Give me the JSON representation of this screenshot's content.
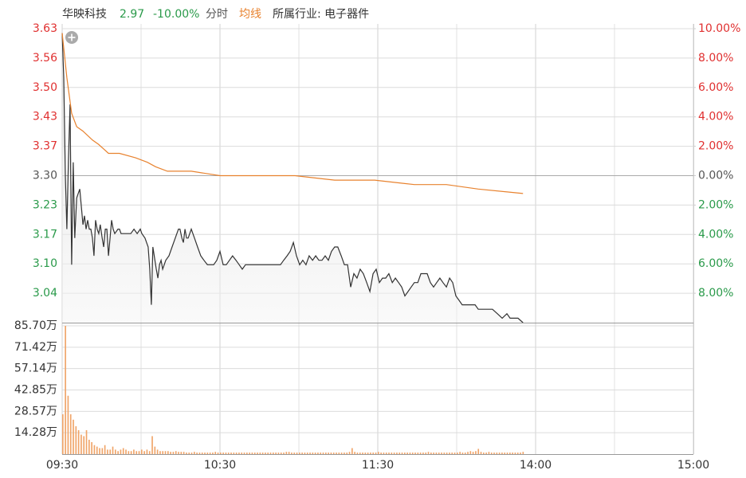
{
  "chart_data": [
    {
      "type": "line",
      "title": "华映科技",
      "price": "2.97",
      "change": "-10.00%",
      "industry": "所属行业: 电子器件",
      "xlim": [
        0,
        240
      ],
      "xticks": [
        {
          "value": 0,
          "label": "09:30"
        },
        {
          "value": 60,
          "label": "10:30"
        },
        {
          "value": 120,
          "label": "11:30"
        },
        {
          "value": 180,
          "label": "14:00"
        },
        {
          "value": 240,
          "label": "15:00"
        }
      ],
      "minor_xticks": [
        30,
        90,
        150,
        210
      ],
      "ylim": [
        2.97,
        3.63
      ],
      "yticks": [
        3.63,
        {
          "value": 3.564,
          "label": "3.56"
        },
        {
          "value": 3.498,
          "label": "3.50"
        },
        {
          "value": 3.432,
          "label": "3.43"
        },
        {
          "value": 3.366,
          "label": "3.37"
        },
        {
          "value": 3.3,
          "label": "3.30"
        },
        {
          "value": 3.234,
          "label": "3.23"
        },
        {
          "value": 3.168,
          "label": "3.17"
        },
        {
          "value": 3.102,
          "label": "3.10"
        },
        {
          "value": 3.036,
          "label": "3.04"
        }
      ],
      "y2lim": [
        -10,
        10
      ],
      "y2ticks": [
        {
          "value": 10,
          "label": "10.00%"
        },
        {
          "value": 8,
          "label": "8.00%"
        },
        {
          "value": 6,
          "label": "6.00%"
        },
        {
          "value": 4,
          "label": "4.00%"
        },
        {
          "value": 2,
          "label": "2.00%"
        },
        {
          "value": 0,
          "label": "0.00%"
        },
        {
          "value": -2,
          "label": "2.00%"
        },
        {
          "value": -4,
          "label": "4.00%"
        },
        {
          "value": -6,
          "label": "6.00%"
        },
        {
          "value": -8,
          "label": "8.00%"
        }
      ],
      "grid": true,
      "series": [
        {
          "name": "分时",
          "color": "#333333",
          "x": [
            0.0,
            0.6,
            1.2,
            1.8,
            2.4,
            3.0,
            3.6,
            4.2,
            4.8,
            5.5,
            6.1,
            6.7,
            7.3,
            7.9,
            8.5,
            9.1,
            9.7,
            10.3,
            10.9,
            11.5,
            12.1,
            12.7,
            13.3,
            13.9,
            14.5,
            15.2,
            15.8,
            16.4,
            17.0,
            17.6,
            18.2,
            18.8,
            19.4,
            20.0,
            21.2,
            21.8,
            22.4,
            23.6,
            24.8,
            26.1,
            27.3,
            28.5,
            29.7,
            30.3,
            31.5,
            32.7,
            33.3,
            33.9,
            34.5,
            35.8,
            36.4,
            37.0,
            37.6,
            38.2,
            39.4,
            40.6,
            41.8,
            43.0,
            44.2,
            44.8,
            45.5,
            46.1,
            46.7,
            47.3,
            47.9,
            49.1,
            50.3,
            51.5,
            52.7,
            53.9,
            55.2,
            56.4,
            57.6,
            58.8,
            60.0,
            61.2,
            62.4,
            63.6,
            64.8,
            66.1,
            67.3,
            68.5,
            69.7,
            70.9,
            72.1,
            73.3,
            74.5,
            75.8,
            77.0,
            78.2,
            79.4,
            80.6,
            81.8,
            83.0,
            84.2,
            85.5,
            86.7,
            87.9,
            89.1,
            90.3,
            91.5,
            92.7,
            93.9,
            95.2,
            96.4,
            97.6,
            98.8,
            100.0,
            101.2,
            102.4,
            103.6,
            104.8,
            106.1,
            107.3,
            108.5,
            109.7,
            110.9,
            112.1,
            113.3,
            114.5,
            115.8,
            117.0,
            118.2,
            119.4,
            120.6,
            121.8,
            123.0,
            124.2,
            125.5,
            126.7,
            127.9,
            129.1,
            130.3,
            131.5,
            132.7,
            133.9,
            135.2,
            136.4,
            137.6,
            138.8,
            140.0,
            141.2,
            142.4,
            143.6,
            144.8,
            146.1,
            147.3,
            148.5,
            149.7,
            150.9,
            152.1,
            155.2,
            157.0,
            158.2,
            160.0,
            161.2,
            163.6,
            165.5,
            167.3,
            169.1,
            170.3,
            173.3,
            175.2
          ],
          "values": [
            3.62,
            3.52,
            3.3,
            3.18,
            3.34,
            3.46,
            3.1,
            3.33,
            3.16,
            3.25,
            3.26,
            3.27,
            3.23,
            3.19,
            3.21,
            3.18,
            3.2,
            3.18,
            3.18,
            3.16,
            3.12,
            3.2,
            3.18,
            3.17,
            3.19,
            3.16,
            3.14,
            3.18,
            3.18,
            3.12,
            3.16,
            3.2,
            3.18,
            3.17,
            3.18,
            3.18,
            3.17,
            3.17,
            3.17,
            3.17,
            3.18,
            3.17,
            3.18,
            3.17,
            3.16,
            3.14,
            3.09,
            3.01,
            3.14,
            3.09,
            3.07,
            3.1,
            3.11,
            3.09,
            3.11,
            3.12,
            3.14,
            3.16,
            3.18,
            3.18,
            3.16,
            3.15,
            3.18,
            3.16,
            3.16,
            3.18,
            3.16,
            3.14,
            3.12,
            3.11,
            3.1,
            3.1,
            3.1,
            3.11,
            3.13,
            3.1,
            3.1,
            3.11,
            3.12,
            3.11,
            3.1,
            3.09,
            3.1,
            3.1,
            3.1,
            3.1,
            3.1,
            3.1,
            3.1,
            3.1,
            3.1,
            3.1,
            3.1,
            3.1,
            3.11,
            3.12,
            3.13,
            3.15,
            3.12,
            3.1,
            3.11,
            3.1,
            3.12,
            3.11,
            3.12,
            3.11,
            3.11,
            3.12,
            3.11,
            3.13,
            3.14,
            3.14,
            3.12,
            3.1,
            3.1,
            3.05,
            3.08,
            3.07,
            3.09,
            3.08,
            3.06,
            3.04,
            3.08,
            3.09,
            3.06,
            3.07,
            3.07,
            3.08,
            3.06,
            3.07,
            3.06,
            3.05,
            3.03,
            3.04,
            3.05,
            3.06,
            3.06,
            3.08,
            3.08,
            3.08,
            3.06,
            3.05,
            3.06,
            3.07,
            3.06,
            3.05,
            3.07,
            3.06,
            3.03,
            3.02,
            3.01,
            3.01,
            3.01,
            3.0,
            3.0,
            3.0,
            3.0,
            2.99,
            2.98,
            2.99,
            2.98,
            2.98,
            2.97
          ]
        },
        {
          "name": "均线",
          "color": "#e8822e",
          "x": [
            0,
            1.8,
            3.6,
            5.5,
            7.9,
            11.5,
            13.9,
            17.6,
            21.8,
            27.9,
            32.4,
            35.5,
            40,
            49.1,
            60,
            73.3,
            88.5,
            103.6,
            118.8,
            133.9,
            146.1,
            158.2,
            175.2
          ],
          "values": [
            3.62,
            3.52,
            3.44,
            3.41,
            3.4,
            3.38,
            3.37,
            3.35,
            3.35,
            3.34,
            3.33,
            3.32,
            3.31,
            3.31,
            3.3,
            3.3,
            3.3,
            3.29,
            3.29,
            3.28,
            3.28,
            3.27,
            3.26
          ]
        }
      ]
    },
    {
      "type": "bar",
      "color": "#f0a468",
      "xlim": [
        0,
        240
      ],
      "ylim": [
        0,
        85.7
      ],
      "yticks": [
        {
          "value": 85.7,
          "label": "85.70万"
        },
        {
          "value": 71.42,
          "label": "71.42万"
        },
        {
          "value": 57.14,
          "label": "57.14万"
        },
        {
          "value": 42.85,
          "label": "42.85万"
        },
        {
          "value": 28.57,
          "label": "28.57万"
        },
        {
          "value": 14.28,
          "label": "14.28万"
        }
      ],
      "x": [
        0,
        1,
        2,
        3,
        4,
        5,
        6,
        7,
        8,
        9,
        10,
        11,
        12,
        13,
        14,
        15,
        16,
        17,
        18,
        19,
        20,
        21,
        22,
        23,
        24,
        25,
        26,
        27,
        28,
        29,
        30,
        31,
        32,
        33,
        34,
        35,
        36,
        37,
        38,
        39,
        40,
        41,
        42,
        43,
        44,
        45,
        46,
        47,
        48,
        49,
        50,
        51,
        52,
        53,
        54,
        55,
        56,
        57,
        58,
        59,
        60,
        61,
        62,
        63,
        64,
        65,
        66,
        67,
        68,
        69,
        70,
        71,
        72,
        73,
        74,
        75,
        76,
        77,
        78,
        79,
        80,
        81,
        82,
        83,
        84,
        85,
        86,
        87,
        88,
        89,
        90,
        91,
        92,
        93,
        94,
        95,
        96,
        97,
        98,
        99,
        100,
        101,
        102,
        103,
        104,
        105,
        106,
        107,
        108,
        109,
        110,
        111,
        112,
        113,
        114,
        115,
        116,
        117,
        118,
        119,
        120,
        121,
        122,
        123,
        124,
        125,
        126,
        127,
        128,
        129,
        130,
        131,
        132,
        133,
        134,
        135,
        136,
        137,
        138,
        139,
        140,
        141,
        142,
        143,
        144,
        145,
        146,
        147,
        148,
        149,
        150,
        151,
        152,
        153,
        154,
        155,
        156,
        157,
        158,
        159,
        160,
        161,
        162,
        163,
        164,
        165,
        166,
        167,
        168,
        169,
        170,
        171,
        172,
        173,
        174,
        175
      ],
      "values": [
        26.6,
        85.7,
        39.0,
        26.6,
        23.0,
        18.6,
        16.0,
        13.0,
        12.0,
        16.0,
        9.6,
        8.0,
        6.0,
        5.0,
        4.0,
        4.0,
        6.0,
        3.0,
        3.0,
        5.0,
        3.0,
        2.0,
        3.0,
        4.0,
        3.0,
        2.0,
        2.0,
        3.0,
        2.0,
        2.0,
        3.0,
        2.0,
        3.0,
        2.0,
        12.0,
        5.0,
        3.0,
        2.0,
        2.0,
        2.0,
        2.0,
        1.5,
        1.5,
        2.0,
        1.5,
        1.5,
        1.5,
        1.0,
        1.0,
        1.0,
        1.5,
        1.0,
        1.0,
        1.0,
        1.0,
        1.0,
        1.0,
        1.0,
        1.5,
        1.0,
        1.0,
        1.0,
        1.0,
        1.0,
        1.0,
        1.0,
        1.0,
        1.0,
        1.0,
        1.0,
        1.0,
        1.0,
        1.0,
        1.0,
        1.0,
        1.0,
        1.0,
        1.0,
        1.0,
        1.0,
        1.0,
        1.0,
        1.0,
        1.0,
        1.0,
        1.5,
        1.5,
        1.0,
        1.0,
        1.0,
        1.0,
        1.0,
        1.0,
        1.0,
        1.0,
        1.0,
        1.0,
        1.0,
        1.0,
        1.0,
        1.0,
        1.0,
        1.0,
        1.0,
        1.0,
        1.0,
        1.0,
        1.0,
        1.0,
        1.5,
        4.0,
        1.5,
        1.0,
        1.0,
        1.0,
        1.0,
        1.0,
        1.0,
        1.0,
        1.0,
        1.5,
        1.0,
        1.0,
        1.0,
        1.0,
        1.0,
        1.0,
        1.0,
        1.0,
        1.0,
        1.0,
        1.0,
        1.0,
        1.0,
        1.0,
        1.0,
        1.0,
        1.0,
        1.0,
        1.5,
        1.0,
        1.0,
        1.0,
        1.0,
        1.0,
        1.0,
        1.0,
        1.0,
        1.0,
        1.0,
        1.0,
        1.5,
        1.0,
        1.0,
        1.5,
        2.0,
        1.5,
        2.0,
        3.5,
        1.5,
        1.0,
        1.0,
        1.5,
        1.0,
        1.0,
        1.0,
        1.0,
        1.0,
        1.0,
        1.0,
        1.0,
        1.0,
        1.0,
        1.0,
        1.0,
        1.5
      ]
    }
  ]
}
